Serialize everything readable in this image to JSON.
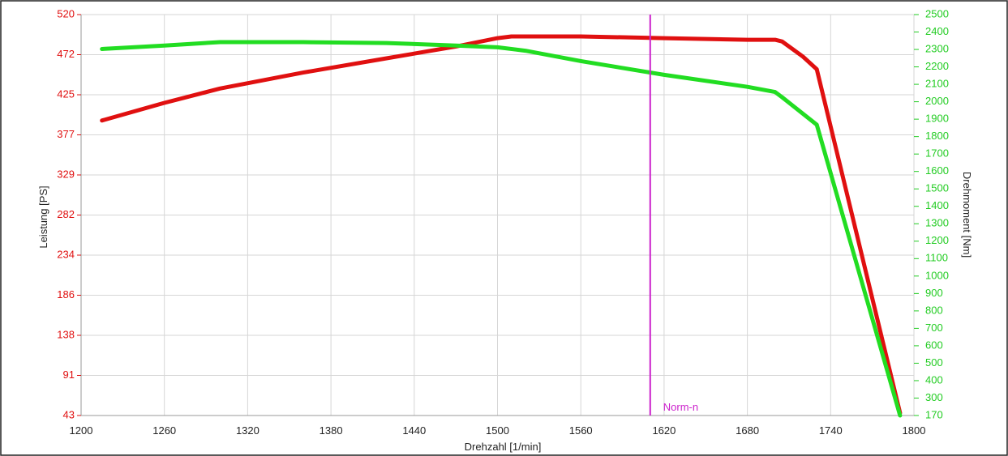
{
  "chart_data": {
    "type": "line",
    "title": "",
    "xlabel": "Drehzahl [1/min]",
    "ylabel_left": "Leistung [PS]",
    "ylabel_right": "Drehmoment [Nm]",
    "xlim": [
      1200,
      1800
    ],
    "ylim_left": [
      43,
      520
    ],
    "ylim_right": [
      170,
      2500
    ],
    "x_ticks": [
      "1200",
      "1260",
      "1320",
      "1380",
      "1440",
      "1500",
      "1560",
      "1620",
      "1680",
      "1740",
      "1800"
    ],
    "y_left_ticks": [
      "520",
      "472",
      "425",
      "377",
      "329",
      "282",
      "234",
      "186",
      "138",
      "91",
      "43"
    ],
    "y_right_ticks": [
      "2500",
      "2400",
      "2300",
      "2200",
      "2100",
      "2000",
      "1900",
      "1800",
      "1700",
      "1600",
      "1500",
      "1400",
      "1300",
      "1200",
      "1100",
      "1000",
      "900",
      "800",
      "700",
      "600",
      "500",
      "400",
      "300",
      "170"
    ],
    "grid": true,
    "colors": {
      "power": "#e01010",
      "torque": "#22dd22",
      "norm_line": "#cc22cc",
      "left_axis": "#e01010",
      "right_axis": "#22cc22",
      "grid": "#d6d6d6"
    },
    "series": [
      {
        "axis": "left",
        "x": [
          1215,
          1260,
          1300,
          1360,
          1420,
          1470,
          1500,
          1510,
          1560,
          1620,
          1680,
          1700,
          1705,
          1720,
          1730,
          1790
        ],
        "y": [
          394,
          415,
          432,
          451,
          468,
          482,
          492,
          494,
          494,
          492,
          490,
          490,
          488,
          470,
          455,
          46
        ]
      },
      {
        "axis": "right",
        "x": [
          1215,
          1260,
          1300,
          1360,
          1420,
          1470,
          1500,
          1520,
          1560,
          1620,
          1680,
          1700,
          1705,
          1730,
          1790
        ],
        "y": [
          2300,
          2320,
          2340,
          2340,
          2335,
          2320,
          2310,
          2290,
          2230,
          2150,
          2080,
          2050,
          2020,
          1860,
          170
        ]
      }
    ],
    "annotations": [
      {
        "label": "Norm-n",
        "x": 1610
      }
    ]
  }
}
